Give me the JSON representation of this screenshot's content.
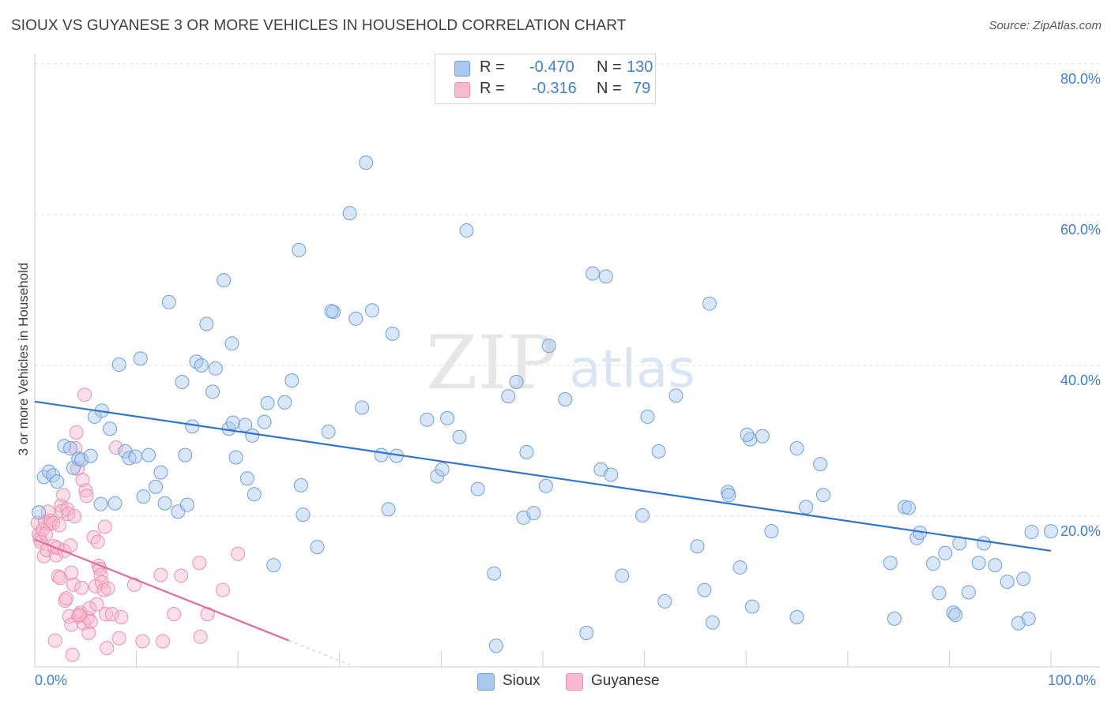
{
  "header": {
    "title": "SIOUX VS GUYANESE 3 OR MORE VEHICLES IN HOUSEHOLD CORRELATION CHART",
    "source": "Source: ZipAtlas.com"
  },
  "legend": {
    "rows": [
      {
        "r_label": "R =",
        "r_value": "-0.470",
        "n_label": "N =",
        "n_value": "130"
      },
      {
        "r_label": "R =",
        "r_value": "-0.316",
        "n_label": "N =",
        "n_value": "79"
      }
    ],
    "series": [
      "Sioux",
      "Guyanese"
    ]
  },
  "watermark": {
    "zip": "ZIP",
    "atlas": "atlas"
  },
  "colors": {
    "sioux_fill": "#a9c8ef",
    "sioux_stroke": "#6d9fdb",
    "sioux_line": "#2f74d0",
    "guyanese_fill": "#f7b8cb",
    "guyanese_stroke": "#ec8fab",
    "guyanese_line": "#e46b94",
    "tick_text": "#3d7fcf",
    "grid": "#dddddd"
  },
  "axes": {
    "ylabel": "3 or more Vehicles in Household",
    "x_min_label": "0.0%",
    "x_max_label": "100.0%"
  },
  "chart_data": {
    "type": "scatter",
    "title": "SIOUX VS GUYANESE 3 OR MORE VEHICLES IN HOUSEHOLD CORRELATION CHART",
    "xlabel": "",
    "ylabel": "3 or more Vehicles in Household",
    "xlim": [
      0,
      100
    ],
    "ylim": [
      0,
      80
    ],
    "y_ticks": [
      20,
      40,
      60,
      80
    ],
    "y_tick_labels": [
      "20.0%",
      "40.0%",
      "60.0%",
      "80.0%"
    ],
    "x_tick_labels": [
      "0.0%",
      "100.0%"
    ],
    "series": [
      {
        "name": "Sioux",
        "r": -0.47,
        "n": 130,
        "trend": {
          "x": [
            0,
            100
          ],
          "y": [
            35.2,
            15.4
          ]
        },
        "points": [
          [
            0.4,
            20.5
          ],
          [
            0.9,
            25.2
          ],
          [
            1.4,
            25.9
          ],
          [
            1.8,
            25.4
          ],
          [
            2.2,
            24.6
          ],
          [
            2.9,
            29.3
          ],
          [
            3.5,
            29.0
          ],
          [
            3.8,
            26.4
          ],
          [
            4.3,
            27.6
          ],
          [
            4.6,
            27.5
          ],
          [
            5.5,
            28.0
          ],
          [
            5.9,
            33.2
          ],
          [
            6.6,
            34.0
          ],
          [
            7.4,
            31.6
          ],
          [
            6.5,
            21.6
          ],
          [
            7.9,
            21.7
          ],
          [
            8.3,
            40.1
          ],
          [
            8.9,
            28.6
          ],
          [
            9.3,
            27.7
          ],
          [
            9.9,
            27.9
          ],
          [
            10.4,
            40.9
          ],
          [
            10.7,
            22.6
          ],
          [
            11.2,
            28.1
          ],
          [
            11.9,
            23.9
          ],
          [
            12.4,
            25.8
          ],
          [
            12.8,
            21.7
          ],
          [
            13.2,
            48.4
          ],
          [
            14.1,
            20.6
          ],
          [
            14.5,
            37.8
          ],
          [
            15.0,
            21.5
          ],
          [
            15.5,
            31.9
          ],
          [
            15.9,
            40.5
          ],
          [
            16.4,
            40.0
          ],
          [
            16.9,
            45.5
          ],
          [
            17.5,
            36.5
          ],
          [
            17.8,
            39.6
          ],
          [
            18.6,
            51.3
          ],
          [
            19.1,
            31.6
          ],
          [
            19.4,
            42.9
          ],
          [
            19.8,
            27.8
          ],
          [
            20.7,
            32.1
          ],
          [
            20.9,
            25.0
          ],
          [
            21.4,
            30.7
          ],
          [
            21.6,
            22.9
          ],
          [
            22.6,
            32.5
          ],
          [
            22.9,
            35.0
          ],
          [
            23.5,
            13.5
          ],
          [
            24.6,
            35.1
          ],
          [
            25.3,
            38.0
          ],
          [
            26.0,
            55.3
          ],
          [
            26.4,
            20.2
          ],
          [
            26.2,
            24.1
          ],
          [
            27.8,
            15.9
          ],
          [
            28.9,
            31.2
          ],
          [
            29.4,
            47.1
          ],
          [
            31.0,
            60.2
          ],
          [
            31.6,
            46.2
          ],
          [
            32.2,
            34.4
          ],
          [
            32.6,
            66.9
          ],
          [
            33.2,
            47.3
          ],
          [
            34.1,
            28.1
          ],
          [
            34.8,
            20.9
          ],
          [
            35.2,
            44.2
          ],
          [
            35.6,
            28.0
          ],
          [
            38.6,
            32.8
          ],
          [
            39.6,
            25.3
          ],
          [
            40.1,
            26.2
          ],
          [
            40.6,
            33.0
          ],
          [
            41.8,
            30.5
          ],
          [
            42.5,
            57.9
          ],
          [
            43.6,
            23.6
          ],
          [
            45.2,
            12.4
          ],
          [
            46.6,
            35.9
          ],
          [
            47.4,
            37.8
          ],
          [
            48.1,
            19.8
          ],
          [
            48.4,
            28.5
          ],
          [
            49.1,
            20.4
          ],
          [
            50.3,
            24.0
          ],
          [
            50.6,
            42.6
          ],
          [
            52.2,
            35.5
          ],
          [
            54.3,
            4.5
          ],
          [
            54.9,
            52.2
          ],
          [
            55.7,
            26.2
          ],
          [
            56.2,
            51.8
          ],
          [
            56.7,
            25.5
          ],
          [
            57.8,
            12.1
          ],
          [
            59.8,
            20.1
          ],
          [
            60.3,
            33.2
          ],
          [
            61.4,
            28.6
          ],
          [
            62.0,
            8.7
          ],
          [
            63.1,
            36.0
          ],
          [
            65.2,
            16.0
          ],
          [
            65.9,
            10.2
          ],
          [
            66.4,
            48.2
          ],
          [
            66.7,
            5.9
          ],
          [
            68.2,
            23.2
          ],
          [
            68.3,
            22.8
          ],
          [
            69.4,
            13.2
          ],
          [
            70.4,
            30.2
          ],
          [
            70.6,
            8.0
          ],
          [
            71.6,
            30.6
          ],
          [
            72.5,
            18.0
          ],
          [
            75.0,
            6.6
          ],
          [
            75.0,
            29.0
          ],
          [
            75.9,
            21.2
          ],
          [
            77.3,
            26.9
          ],
          [
            77.6,
            22.8
          ],
          [
            84.2,
            13.8
          ],
          [
            84.6,
            6.4
          ],
          [
            85.6,
            21.2
          ],
          [
            86.0,
            21.1
          ],
          [
            86.8,
            17.1
          ],
          [
            87.1,
            17.8
          ],
          [
            88.4,
            13.7
          ],
          [
            89.0,
            9.8
          ],
          [
            89.6,
            15.1
          ],
          [
            90.4,
            7.2
          ],
          [
            90.6,
            6.9
          ],
          [
            91.0,
            16.4
          ],
          [
            91.9,
            9.9
          ],
          [
            92.9,
            13.8
          ],
          [
            93.4,
            16.4
          ],
          [
            94.5,
            13.5
          ],
          [
            95.7,
            11.3
          ],
          [
            96.8,
            5.8
          ],
          [
            97.3,
            11.7
          ],
          [
            97.8,
            6.4
          ],
          [
            98.1,
            17.9
          ],
          [
            100.0,
            18.0
          ],
          [
            45.4,
            2.8
          ],
          [
            29.2,
            47.2
          ],
          [
            19.5,
            32.4
          ],
          [
            70.1,
            30.8
          ],
          [
            14.8,
            28.1
          ]
        ]
      },
      {
        "name": "Guyanese",
        "r": -0.316,
        "n": 79,
        "trend": {
          "x": [
            0,
            25
          ],
          "y": [
            16.9,
            3.5
          ]
        },
        "points": [
          [
            0.3,
            19.1
          ],
          [
            0.4,
            17.6
          ],
          [
            0.5,
            17.0
          ],
          [
            0.6,
            16.6
          ],
          [
            0.8,
            18.2
          ],
          [
            0.9,
            14.7
          ],
          [
            1.0,
            19.3
          ],
          [
            1.1,
            17.6
          ],
          [
            1.2,
            15.5
          ],
          [
            1.3,
            20.6
          ],
          [
            1.5,
            19.0
          ],
          [
            1.6,
            19.4
          ],
          [
            1.8,
            19.1
          ],
          [
            1.9,
            16.0
          ],
          [
            2.0,
            3.5
          ],
          [
            2.1,
            14.8
          ],
          [
            2.2,
            15.8
          ],
          [
            2.3,
            12.0
          ],
          [
            2.4,
            18.8
          ],
          [
            2.5,
            11.8
          ],
          [
            2.6,
            21.4
          ],
          [
            2.7,
            20.7
          ],
          [
            2.8,
            22.8
          ],
          [
            2.9,
            15.4
          ],
          [
            3.0,
            8.8
          ],
          [
            3.1,
            9.1
          ],
          [
            3.2,
            20.9
          ],
          [
            3.3,
            20.3
          ],
          [
            3.4,
            6.7
          ],
          [
            3.5,
            16.1
          ],
          [
            3.6,
            5.6
          ],
          [
            3.7,
            1.6
          ],
          [
            3.8,
            10.9
          ],
          [
            3.9,
            20.0
          ],
          [
            4.0,
            29.0
          ],
          [
            4.1,
            31.1
          ],
          [
            4.2,
            26.3
          ],
          [
            4.3,
            6.7
          ],
          [
            4.5,
            7.2
          ],
          [
            4.6,
            10.5
          ],
          [
            4.7,
            24.8
          ],
          [
            4.8,
            5.8
          ],
          [
            4.9,
            36.1
          ],
          [
            5.0,
            23.4
          ],
          [
            5.1,
            22.7
          ],
          [
            5.2,
            6.5
          ],
          [
            5.3,
            4.5
          ],
          [
            5.4,
            7.8
          ],
          [
            5.5,
            6.0
          ],
          [
            5.8,
            17.2
          ],
          [
            6.0,
            10.7
          ],
          [
            6.1,
            8.3
          ],
          [
            6.2,
            16.6
          ],
          [
            6.3,
            13.4
          ],
          [
            6.4,
            13.0
          ],
          [
            6.5,
            12.2
          ],
          [
            6.6,
            11.2
          ],
          [
            6.8,
            10.2
          ],
          [
            6.9,
            18.6
          ],
          [
            7.0,
            7.0
          ],
          [
            7.1,
            2.5
          ],
          [
            7.6,
            7.0
          ],
          [
            8.0,
            29.1
          ],
          [
            8.3,
            3.8
          ],
          [
            8.5,
            6.6
          ],
          [
            9.8,
            10.9
          ],
          [
            10.6,
            3.4
          ],
          [
            12.4,
            12.2
          ],
          [
            12.6,
            3.4
          ],
          [
            13.7,
            7.0
          ],
          [
            14.4,
            12.1
          ],
          [
            16.2,
            13.8
          ],
          [
            16.3,
            4.0
          ],
          [
            17.0,
            7.0
          ],
          [
            18.5,
            10.2
          ],
          [
            20.0,
            15.0
          ],
          [
            7.2,
            10.4
          ],
          [
            4.4,
            6.9
          ],
          [
            3.6,
            12.5
          ]
        ]
      }
    ]
  }
}
